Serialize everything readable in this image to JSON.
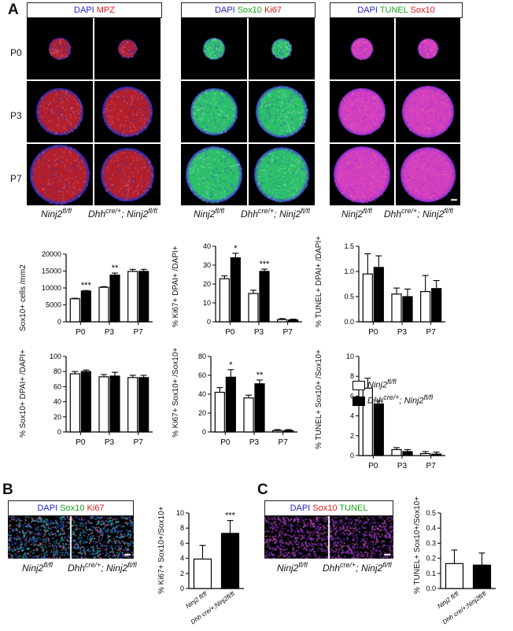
{
  "panels": {
    "A": "A",
    "B": "B",
    "C": "C"
  },
  "headers": {
    "g1": [
      {
        "t": "DAPI",
        "c": "blue"
      },
      {
        "t": "MPZ",
        "c": "red"
      }
    ],
    "g2": [
      {
        "t": "DAPI",
        "c": "blue"
      },
      {
        "t": "Sox10",
        "c": "green"
      },
      {
        "t": "Ki67",
        "c": "red"
      }
    ],
    "g3": [
      {
        "t": "DAPI",
        "c": "blue"
      },
      {
        "t": "TUNEL",
        "c": "green"
      },
      {
        "t": "Sox10",
        "c": "red"
      }
    ],
    "b": [
      {
        "t": "DAPI",
        "c": "blue"
      },
      {
        "t": "Sox10",
        "c": "green"
      },
      {
        "t": "Ki67",
        "c": "red"
      }
    ],
    "c": [
      {
        "t": "DAPI",
        "c": "blue"
      },
      {
        "t": "Sox10",
        "c": "red"
      },
      {
        "t": "TUNEL",
        "c": "green"
      }
    ]
  },
  "rows": [
    "P0",
    "P3",
    "P7"
  ],
  "genotypes": {
    "ctrl_base": "Ninj2",
    "ctrl_sup": "fl/fl",
    "cko_base1": "Dhh",
    "cko_sup1": "cre/+",
    "cko_base2": "; Ninj2",
    "cko_sup2": "fl/fl"
  },
  "legend": {
    "ctrl": "Ninj2",
    "ctrl_sup": "fl/fl",
    "cko": "Dhh",
    "cko_sup": "cre/+",
    "cko2": "; Ninj2",
    "cko2_sup": "fl/fl"
  },
  "chart_data": [
    {
      "id": "sox10_density",
      "type": "bar",
      "ylabel": "Sox10+ cells /mm2",
      "ylim": [
        0,
        20000
      ],
      "yticks": [
        0,
        5000,
        10000,
        15000,
        20000
      ],
      "categories": [
        "P0",
        "P3",
        "P7"
      ],
      "series": [
        {
          "name": "Ninj2 fl/fl",
          "values": [
            6800,
            10200,
            14900
          ],
          "err": [
            150,
            200,
            600
          ]
        },
        {
          "name": "Dhh cre/+; Ninj2 fl/fl",
          "values": [
            9100,
            13800,
            14900
          ],
          "err": [
            150,
            600,
            600
          ]
        }
      ],
      "sig": [
        "***",
        "**",
        ""
      ]
    },
    {
      "id": "ki67_dapi",
      "type": "bar",
      "ylabel": "% Ki67+ DPAI+ /DAPI+",
      "ylim": [
        0,
        40
      ],
      "yticks": [
        0,
        10,
        20,
        30,
        40
      ],
      "categories": [
        "P0",
        "P3",
        "P7"
      ],
      "series": [
        {
          "name": "Ninj2 fl/fl",
          "values": [
            22.8,
            15,
            1.2
          ],
          "err": [
            1.5,
            1.7,
            0.5
          ]
        },
        {
          "name": "Dhh cre/+; Ninj2 fl/fl",
          "values": [
            33.9,
            26.7,
            1
          ],
          "err": [
            2.4,
            1.2,
            0.4
          ]
        }
      ],
      "sig": [
        "*",
        "***",
        ""
      ]
    },
    {
      "id": "tunel_dapi",
      "type": "bar",
      "ylabel": "% TUNEL+ DPAI+ /DAPI+",
      "ylim": [
        0,
        1.5
      ],
      "yticks": [
        "0.0",
        "0.5",
        "1.0",
        "1.5"
      ],
      "categories": [
        "P0",
        "P3",
        "P7"
      ],
      "series": [
        {
          "name": "Ninj2 fl/fl",
          "values": [
            0.95,
            0.55,
            0.6
          ],
          "err": [
            0.4,
            0.12,
            0.32
          ]
        },
        {
          "name": "Dhh cre/+; Ninj2 fl/fl",
          "values": [
            1.08,
            0.5,
            0.66
          ],
          "err": [
            0.23,
            0.15,
            0.16
          ]
        }
      ],
      "sig": [
        "",
        "",
        ""
      ]
    },
    {
      "id": "sox10_dapi",
      "type": "bar",
      "ylabel": "% Sox10+ DPAI+ /DAPI+",
      "ylim": [
        0,
        100
      ],
      "yticks": [
        0,
        20,
        40,
        60,
        80,
        100
      ],
      "categories": [
        "P0",
        "P3",
        "P7"
      ],
      "series": [
        {
          "name": "Ninj2 fl/fl",
          "values": [
            77,
            73,
            72
          ],
          "err": [
            3,
            3,
            3
          ]
        },
        {
          "name": "Dhh cre/+; Ninj2 fl/fl",
          "values": [
            80,
            74,
            72
          ],
          "err": [
            2,
            5,
            3
          ]
        }
      ],
      "sig": [
        "",
        "",
        ""
      ]
    },
    {
      "id": "ki67_sox10",
      "type": "bar",
      "ylabel": "% Ki67+ Sox10+ /Sox10+",
      "ylim": [
        0,
        80
      ],
      "yticks": [
        0,
        20,
        40,
        60,
        80
      ],
      "categories": [
        "P0",
        "P3",
        "P7"
      ],
      "series": [
        {
          "name": "Ninj2 fl/fl",
          "values": [
            42,
            36,
            1.5
          ],
          "err": [
            5,
            3,
            1
          ]
        },
        {
          "name": "Dhh cre/+; Ninj2 fl/fl",
          "values": [
            58,
            51,
            1.5
          ],
          "err": [
            8,
            4,
            1
          ]
        }
      ],
      "sig": [
        "*",
        "**",
        ""
      ]
    },
    {
      "id": "tunel_sox10",
      "type": "bar",
      "ylabel": "% TUNEL+ Sox10+ /Sox10+",
      "ylim": [
        0,
        10
      ],
      "yticks": [
        0,
        2,
        4,
        6,
        8,
        10
      ],
      "categories": [
        "P0",
        "P3",
        "P7"
      ],
      "series": [
        {
          "name": "Ninj2 fl/fl",
          "values": [
            6.8,
            0.6,
            0.2
          ],
          "err": [
            1,
            0.2,
            0.2
          ]
        },
        {
          "name": "Dhh cre/+; Ninj2 fl/fl",
          "values": [
            5.2,
            0.4,
            0.15
          ],
          "err": [
            0.3,
            0.2,
            0.2
          ]
        }
      ],
      "sig": [
        "",
        "",
        ""
      ]
    },
    {
      "id": "b_ki67_sox10",
      "type": "bar",
      "ylabel": "% Ki67+ Sox10+/Sox10+",
      "ylim": [
        0,
        10
      ],
      "yticks": [
        0,
        2,
        4,
        6,
        8,
        10
      ],
      "categories": [
        "Ninj2 fl/fl",
        "Dhh cre/+;Ninj2fl/fl"
      ],
      "series": [
        {
          "name": "values",
          "values": [
            3.9,
            7.3
          ],
          "err": [
            1.8,
            1.7
          ]
        }
      ],
      "sig": [
        "",
        "***"
      ]
    },
    {
      "id": "c_tunel_sox10",
      "type": "bar",
      "ylabel": "% TUNEL+ Sox10+/Sox10+",
      "ylim": [
        0,
        0.5
      ],
      "yticks": [
        "0.0",
        "0.1",
        "0.2",
        "0.3",
        "0.4",
        "0.5"
      ],
      "categories": [
        "Ninj2 fl/fl",
        "Dhh cre/+;Ninj2fl/fl"
      ],
      "series": [
        {
          "name": "values",
          "values": [
            0.165,
            0.155
          ],
          "err": [
            0.09,
            0.08
          ]
        }
      ],
      "sig": [
        "",
        ""
      ]
    }
  ]
}
